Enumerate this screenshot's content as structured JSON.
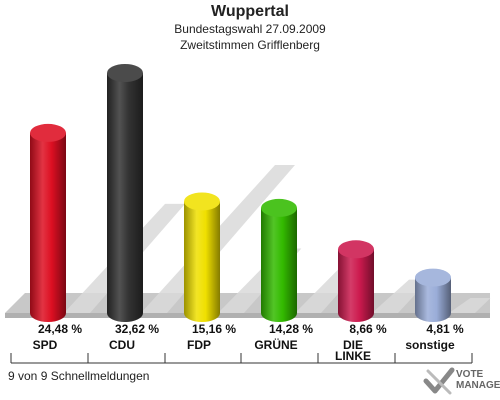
{
  "title": "Wuppertal",
  "subtitle1": "Bundestagswahl 27.09.2009",
  "subtitle2": "Zweitstimmen Grifflenberg",
  "footer": "9 von 9 Schnellmeldungen",
  "logo": {
    "line1": "VOTE",
    "line2": "MANAGER"
  },
  "colors": {
    "SPD": "#dd0f22",
    "CDU": "#333333",
    "FDP": "#f0e000",
    "GRÜNE": "#33bb00",
    "DIE LINKE": "#cc1a4e",
    "sonstige": "#9aadd8"
  },
  "chart_data": {
    "type": "bar",
    "title": "Wuppertal",
    "categories": [
      "SPD",
      "CDU",
      "FDP",
      "GRÜNE",
      "DIE\nLINKE",
      "sonstige"
    ],
    "values": [
      24.48,
      32.62,
      15.16,
      14.28,
      8.66,
      4.81
    ],
    "value_labels": [
      "24,48 %",
      "32,62 %",
      "15,16 %",
      "14,28 %",
      "8,66 %",
      "4,81 %"
    ],
    "ylim": [
      0,
      35
    ],
    "grid": false,
    "legend": "none"
  }
}
